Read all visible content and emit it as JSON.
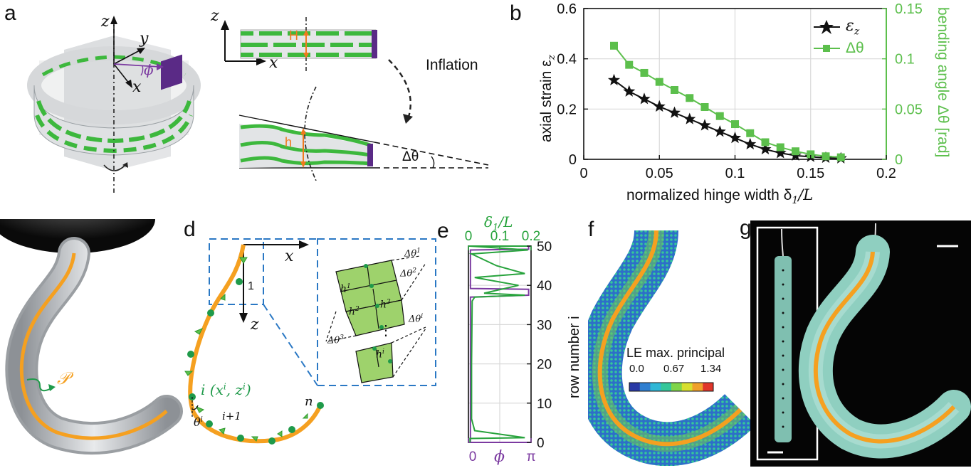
{
  "panel_labels": {
    "a": "a",
    "b": "b",
    "c": "c",
    "d": "d",
    "e": "e",
    "f": "f",
    "g": "g"
  },
  "panel_a": {
    "axis_z": "z",
    "axis_y": "y",
    "axis_x": "x",
    "angle_phi": "ϕ",
    "strip_axis_z": "z",
    "strip_axis_x": "x",
    "H_label": "H",
    "h_label": "h",
    "inflation_label": "Inflation",
    "delta_theta_label": "Δθ",
    "colors": {
      "green": "#3db83d",
      "purple": "#5a2a86",
      "orange": "#f07a1c",
      "gray": "#cfd2d4"
    }
  },
  "panel_c": {
    "path_label": "𝒫",
    "colors": {
      "orange": "#f5a020",
      "green": "#1f9a4a"
    }
  },
  "panel_d": {
    "axis_x": "x",
    "axis_z": "z",
    "node_1": "1",
    "node_i": "i",
    "node_i_coords": "(x",
    "node_i_sup": "i",
    "node_i_mid": ", z",
    "node_i_close": ")",
    "node_ip1": "i+1",
    "node_n": "n",
    "theta_i": "θ",
    "inset": {
      "h1": "h",
      "h2": "h",
      "h3": "h",
      "hi": "h",
      "sup1": "1",
      "sup2": "2",
      "sup3": "3",
      "supi": "i",
      "dt1": "Δθ",
      "dt2": "Δθ",
      "dt3": "Δθ",
      "dti": "Δθ",
      "dots": "⋮"
    }
  },
  "panel_f": {
    "colorbar_title": "LE max. principal",
    "ticks": [
      "0.0",
      "0.67",
      "1.34"
    ],
    "colormap": [
      "#2a3aa6",
      "#2f7fd0",
      "#2fb7d6",
      "#35c79a",
      "#7fd54a",
      "#d7df2f",
      "#f0a02a",
      "#e0352a"
    ]
  },
  "chart_data": [
    {
      "panel": "b",
      "type": "scatter",
      "xlabel": "normalized hinge width δ",
      "xlabel_sub": "1",
      "xlabel_tail": "/L",
      "ylabel": "axial strain ε",
      "ylabel_sub": "z",
      "y2label": "bending angle Δθ [rad]",
      "xlim": [
        0,
        0.2
      ],
      "ylim": [
        0,
        0.6
      ],
      "y2lim": [
        0,
        0.15
      ],
      "xticks": [
        "0",
        "0.05",
        "0.1",
        "0.15",
        "0.2"
      ],
      "yticks": [
        "0",
        "0.2",
        "0.4",
        "0.6"
      ],
      "y2ticks": [
        "0",
        "0.05",
        "0.1",
        "0.15"
      ],
      "grid": true,
      "legend_position": "top-right",
      "series": [
        {
          "name": "ε",
          "name_sub": "z",
          "axis": "left",
          "color": "#111111",
          "marker": "star",
          "x": [
            0.02,
            0.03,
            0.04,
            0.05,
            0.06,
            0.07,
            0.08,
            0.09,
            0.1,
            0.11,
            0.12,
            0.13,
            0.14,
            0.15,
            0.16,
            0.17
          ],
          "y": [
            0.315,
            0.27,
            0.24,
            0.21,
            0.185,
            0.16,
            0.135,
            0.11,
            0.085,
            0.06,
            0.04,
            0.025,
            0.015,
            0.01,
            0.006,
            0.004
          ]
        },
        {
          "name": "Δθ",
          "axis": "right",
          "color": "#5cbf4c",
          "marker": "square",
          "x": [
            0.02,
            0.03,
            0.04,
            0.05,
            0.06,
            0.07,
            0.08,
            0.09,
            0.1,
            0.11,
            0.12,
            0.13,
            0.14,
            0.15,
            0.16,
            0.17
          ],
          "y": [
            0.113,
            0.094,
            0.086,
            0.077,
            0.069,
            0.061,
            0.052,
            0.043,
            0.035,
            0.026,
            0.017,
            0.012,
            0.008,
            0.005,
            0.003,
            0.002
          ]
        }
      ]
    },
    {
      "panel": "e",
      "type": "line",
      "xlabel": "ϕ",
      "xticks": [
        "0",
        "π"
      ],
      "x2label": "δ",
      "x2label_sub": "1",
      "x2label_tail": "/L",
      "x2ticks": [
        "0",
        "0.1",
        "0.2"
      ],
      "ylabel": "row number i",
      "yticks": [
        "0",
        "10",
        "20",
        "30",
        "40",
        "50"
      ],
      "ylim": [
        0,
        50
      ],
      "xlim": [
        0,
        3.1416
      ],
      "x2lim": [
        0,
        0.2
      ],
      "grid": true,
      "series": [
        {
          "axis": "bottom",
          "color": "#7b3aa0",
          "x": [
            0.1,
            0.1,
            0.1,
            3.02,
            3.02,
            0.1,
            0.1,
            3.02,
            3.02
          ],
          "y": [
            0,
            1,
            37,
            37.5,
            39,
            39.2,
            49,
            49.2,
            50
          ]
        },
        {
          "axis": "top",
          "color": "#27a33c",
          "x": [
            0.005,
            0.005,
            0.18,
            0.02,
            0.01,
            0.01,
            0.012,
            0.02,
            0.18,
            0.05,
            0.16,
            0.02,
            0.18,
            0.09,
            0.01,
            0.19,
            0.005
          ],
          "y": [
            0,
            1,
            1.2,
            3,
            6,
            20,
            36,
            37,
            37.5,
            38,
            40,
            42,
            43,
            45,
            48,
            49,
            50
          ]
        }
      ]
    }
  ]
}
